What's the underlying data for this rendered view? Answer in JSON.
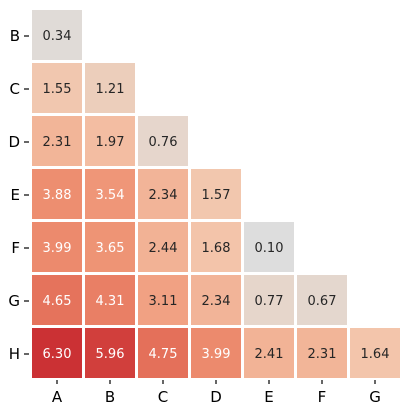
{
  "chart_data": {
    "type": "heatmap",
    "title": "",
    "xlabel": "",
    "ylabel": "",
    "x_categories": [
      "A",
      "B",
      "C",
      "D",
      "E",
      "F",
      "G"
    ],
    "y_categories": [
      "B",
      "C",
      "D",
      "E",
      "F",
      "G",
      "H"
    ],
    "layout": "lower-triangle",
    "colormap": "light grey to red (low to high)",
    "value_range": [
      0.1,
      6.3
    ],
    "colorbar": false,
    "cells": [
      {
        "x": "A",
        "y": "B",
        "value": 0.34,
        "label": "0.34"
      },
      {
        "x": "A",
        "y": "C",
        "value": 1.55,
        "label": "1.55"
      },
      {
        "x": "B",
        "y": "C",
        "value": 1.21,
        "label": "1.21"
      },
      {
        "x": "A",
        "y": "D",
        "value": 2.31,
        "label": "2.31"
      },
      {
        "x": "B",
        "y": "D",
        "value": 1.97,
        "label": "1.97"
      },
      {
        "x": "C",
        "y": "D",
        "value": 0.76,
        "label": "0.76"
      },
      {
        "x": "A",
        "y": "E",
        "value": 3.88,
        "label": "3.88"
      },
      {
        "x": "B",
        "y": "E",
        "value": 3.54,
        "label": "3.54"
      },
      {
        "x": "C",
        "y": "E",
        "value": 2.34,
        "label": "2.34"
      },
      {
        "x": "D",
        "y": "E",
        "value": 1.57,
        "label": "1.57"
      },
      {
        "x": "A",
        "y": "F",
        "value": 3.99,
        "label": "3.99"
      },
      {
        "x": "B",
        "y": "F",
        "value": 3.65,
        "label": "3.65"
      },
      {
        "x": "C",
        "y": "F",
        "value": 2.44,
        "label": "2.44"
      },
      {
        "x": "D",
        "y": "F",
        "value": 1.68,
        "label": "1.68"
      },
      {
        "x": "E",
        "y": "F",
        "value": 0.1,
        "label": "0.10"
      },
      {
        "x": "A",
        "y": "G",
        "value": 4.65,
        "label": "4.65"
      },
      {
        "x": "B",
        "y": "G",
        "value": 4.31,
        "label": "4.31"
      },
      {
        "x": "C",
        "y": "G",
        "value": 3.11,
        "label": "3.11"
      },
      {
        "x": "D",
        "y": "G",
        "value": 2.34,
        "label": "2.34"
      },
      {
        "x": "E",
        "y": "G",
        "value": 0.77,
        "label": "0.77"
      },
      {
        "x": "F",
        "y": "G",
        "value": 0.67,
        "label": "0.67"
      },
      {
        "x": "A",
        "y": "H",
        "value": 6.3,
        "label": "6.30"
      },
      {
        "x": "B",
        "y": "H",
        "value": 5.96,
        "label": "5.96"
      },
      {
        "x": "C",
        "y": "H",
        "value": 4.75,
        "label": "4.75"
      },
      {
        "x": "D",
        "y": "H",
        "value": 3.99,
        "label": "3.99"
      },
      {
        "x": "E",
        "y": "H",
        "value": 2.41,
        "label": "2.41"
      },
      {
        "x": "F",
        "y": "H",
        "value": 2.31,
        "label": "2.31"
      },
      {
        "x": "G",
        "y": "H",
        "value": 1.64,
        "label": "1.64"
      }
    ]
  }
}
